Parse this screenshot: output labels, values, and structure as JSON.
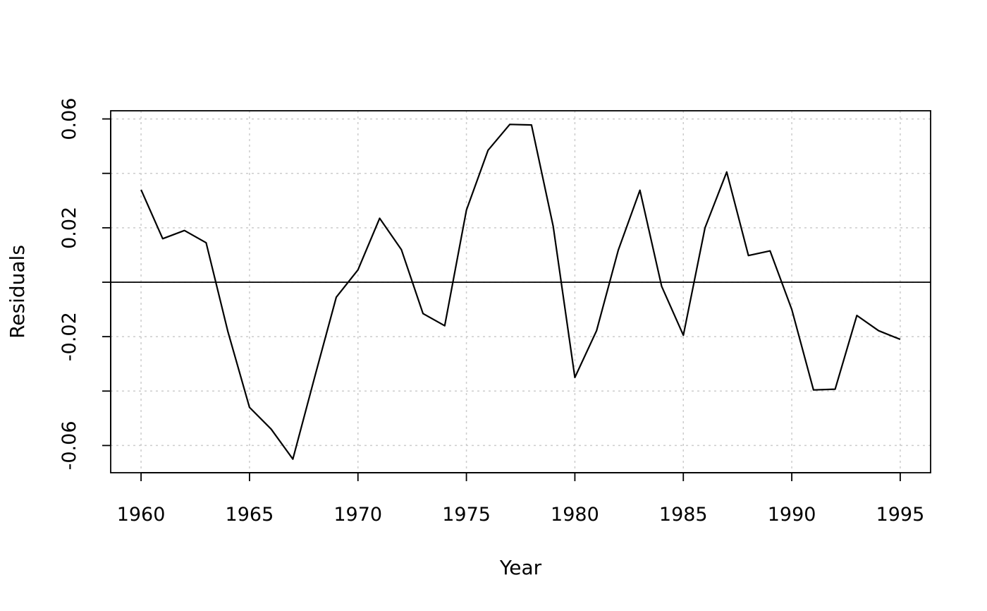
{
  "chart_data": {
    "type": "line",
    "title": "",
    "xlabel": "Year",
    "ylabel": "Residuals",
    "xlim": [
      1958.6,
      1996.4
    ],
    "ylim": [
      -0.07,
      0.063
    ],
    "xticks": [
      1960,
      1965,
      1970,
      1975,
      1980,
      1985,
      1990,
      1995
    ],
    "xtick_labels": [
      "1960",
      "1965",
      "1970",
      "1975",
      "1980",
      "1985",
      "1990",
      "1995"
    ],
    "yticks": [
      -0.06,
      -0.04,
      -0.02,
      0,
      0.02,
      0.04,
      0.06
    ],
    "ytick_labels": [
      "-0.06",
      "",
      "-0.02",
      "",
      "0.02",
      "",
      "0.06"
    ],
    "grid": true,
    "reference_line": 0,
    "x": [
      1960,
      1961,
      1962,
      1963,
      1964,
      1965,
      1966,
      1967,
      1968,
      1969,
      1970,
      1971,
      1972,
      1973,
      1974,
      1975,
      1976,
      1977,
      1978,
      1979,
      1980,
      1981,
      1982,
      1983,
      1984,
      1985,
      1986,
      1987,
      1988,
      1989,
      1990,
      1991,
      1992,
      1993,
      1994,
      1995
    ],
    "y": [
      0.034,
      0.016,
      0.019,
      0.0145,
      -0.018,
      -0.046,
      -0.054,
      -0.065,
      -0.035,
      -0.0055,
      0.0045,
      0.0235,
      0.012,
      -0.0115,
      -0.016,
      0.0265,
      0.0485,
      0.058,
      0.0578,
      0.0205,
      -0.035,
      -0.0178,
      0.0118,
      0.0338,
      -0.0015,
      -0.0195,
      0.02,
      0.0405,
      0.0098,
      0.0115,
      -0.01,
      -0.0396,
      -0.0393,
      -0.0122,
      -0.0178,
      -0.021
    ]
  }
}
